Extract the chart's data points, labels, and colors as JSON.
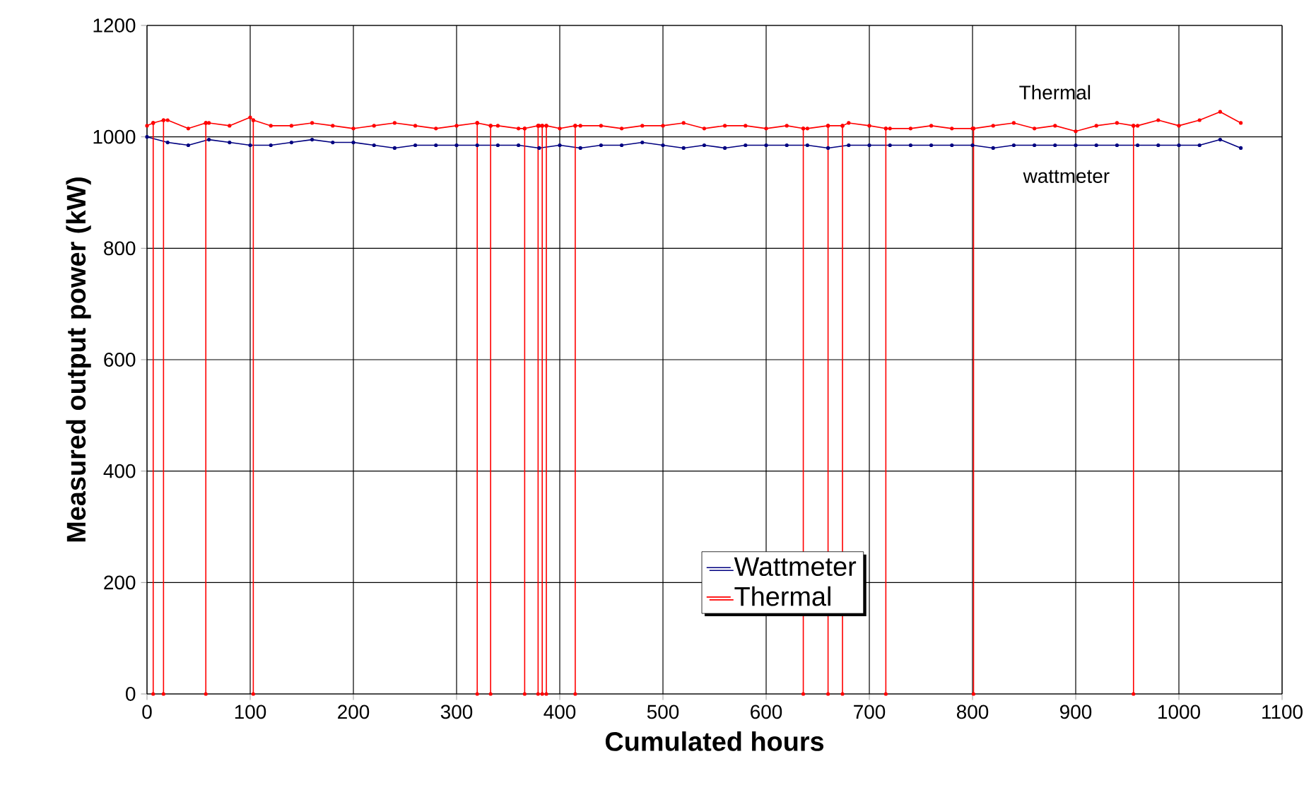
{
  "chart_data": {
    "type": "line",
    "xlabel": "Cumulated hours",
    "ylabel": "Measured output power (kW)",
    "xlim": [
      0,
      1100
    ],
    "xticks": [
      0,
      100,
      200,
      300,
      400,
      500,
      600,
      700,
      800,
      900,
      1000,
      1100
    ],
    "ylim": [
      0,
      1200
    ],
    "yticks": [
      0,
      200,
      400,
      600,
      800,
      1000,
      1200
    ],
    "grid": true,
    "legend": "bottom",
    "marker": "circle",
    "line_style": "solid",
    "series": [
      {
        "name": "Wattmeter",
        "color": "#000080",
        "x": [
          0,
          20,
          40,
          60,
          80,
          100,
          120,
          140,
          160,
          180,
          200,
          220,
          240,
          260,
          280,
          300,
          320,
          340,
          360,
          380,
          400,
          420,
          440,
          460,
          480,
          500,
          520,
          540,
          560,
          580,
          600,
          620,
          640,
          660,
          680,
          700,
          720,
          740,
          760,
          780,
          800,
          820,
          840,
          860,
          880,
          900,
          920,
          940,
          960,
          980,
          1000,
          1020,
          1040,
          1060
        ],
        "values": [
          1000,
          990,
          985,
          995,
          990,
          985,
          985,
          990,
          995,
          990,
          990,
          985,
          980,
          985,
          985,
          985,
          985,
          985,
          985,
          980,
          985,
          980,
          985,
          985,
          990,
          985,
          980,
          985,
          980,
          985,
          985,
          985,
          985,
          980,
          985,
          985,
          985,
          985,
          985,
          985,
          985,
          980,
          985,
          985,
          985,
          985,
          985,
          985,
          985,
          985,
          985,
          985,
          995,
          980
        ]
      },
      {
        "name": "Thermal",
        "color": "#ff0000",
        "x": [
          0,
          6,
          6,
          6,
          16,
          16,
          16,
          20,
          40,
          57,
          57,
          57,
          60,
          80,
          100,
          103,
          103,
          103,
          120,
          140,
          160,
          180,
          200,
          220,
          240,
          260,
          280,
          300,
          320,
          320,
          320,
          333,
          333,
          333,
          340,
          360,
          366,
          366,
          366,
          379,
          379,
          379,
          380,
          383,
          383,
          383,
          387,
          387,
          387,
          400,
          415,
          415,
          415,
          420,
          440,
          460,
          480,
          500,
          520,
          540,
          560,
          580,
          600,
          620,
          636,
          636,
          636,
          640,
          660,
          660,
          660,
          674,
          674,
          674,
          680,
          700,
          716,
          716,
          716,
          720,
          740,
          760,
          780,
          800,
          801,
          801,
          801,
          820,
          840,
          860,
          880,
          900,
          920,
          940,
          956,
          956,
          956,
          960,
          980,
          1000,
          1020,
          1040,
          1060
        ],
        "values": [
          1020,
          1025,
          0,
          1025,
          1030,
          0,
          1030,
          1030,
          1015,
          1025,
          0,
          1025,
          1025,
          1020,
          1035,
          1030,
          0,
          1030,
          1020,
          1020,
          1025,
          1020,
          1015,
          1020,
          1025,
          1020,
          1015,
          1020,
          1025,
          0,
          1025,
          1020,
          0,
          1020,
          1020,
          1015,
          1015,
          0,
          1015,
          1020,
          0,
          1020,
          1020,
          1020,
          0,
          1020,
          1020,
          0,
          1020,
          1015,
          1020,
          0,
          1020,
          1020,
          1020,
          1015,
          1020,
          1020,
          1025,
          1015,
          1020,
          1020,
          1015,
          1020,
          1015,
          0,
          1015,
          1015,
          1020,
          0,
          1020,
          1020,
          0,
          1020,
          1025,
          1020,
          1015,
          0,
          1015,
          1015,
          1015,
          1020,
          1015,
          1015,
          1015,
          0,
          1015,
          1020,
          1025,
          1015,
          1020,
          1010,
          1020,
          1025,
          1020,
          0,
          1020,
          1020,
          1030,
          1020,
          1030,
          1045,
          1025
        ]
      }
    ],
    "annotations": [
      "Thermal",
      "wattmeter"
    ]
  }
}
